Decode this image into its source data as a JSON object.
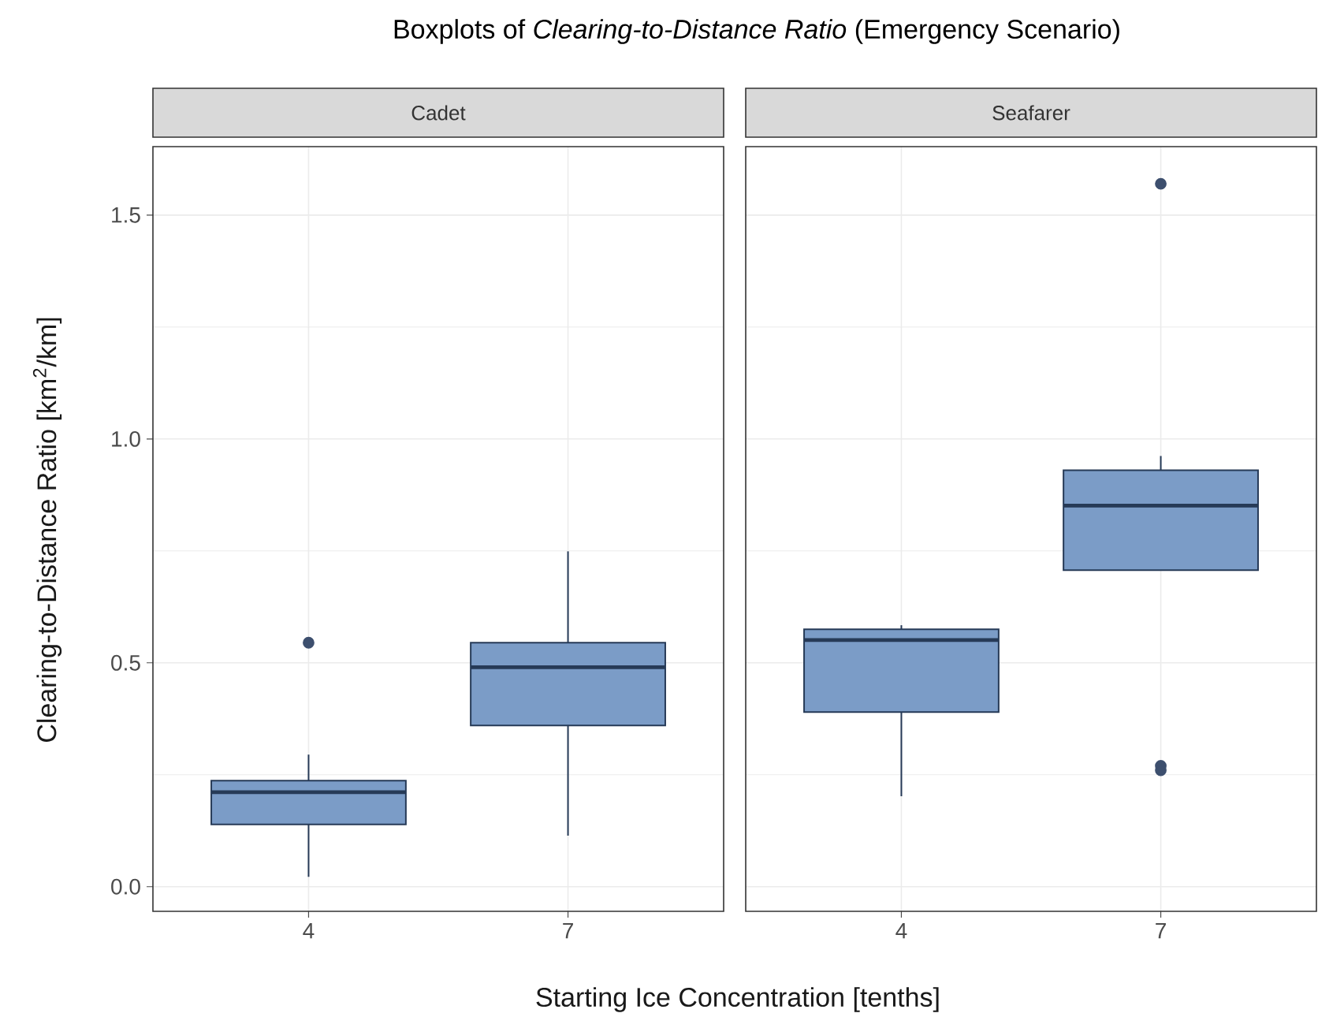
{
  "chart_data": [
    {
      "type": "box",
      "title": "Boxplots of *Clearing-to-Distance Ratio* (Emergency Scenario)",
      "subtitle": "Cadet",
      "xlabel": "Starting Ice Concentration [tenths]",
      "ylabel": "Clearing-to-Distance Ratio [km$^{2}$/km]",
      "categories": [
        "4",
        "7"
      ],
      "ylim": [
        -0.055,
        1.653
      ],
      "yticks": [
        {
          "value": 0,
          "label": "0.0"
        },
        {
          "value": 0.5,
          "label": "0.5"
        },
        {
          "value": 1,
          "label": "1.0"
        },
        {
          "value": 1.5,
          "label": "1.5"
        }
      ],
      "grid": true,
      "series": [
        {
          "color": "#7b9cc7",
          "boxes": [
            {
              "low": 0.022,
              "q1": 0.139,
              "median": 0.211,
              "q3": 0.237,
              "high": 0.295,
              "outliers": [
                0.545
              ]
            },
            {
              "low": 0.114,
              "q1": 0.36,
              "median": 0.49,
              "q3": 0.545,
              "high": 0.749
            }
          ]
        }
      ]
    },
    {
      "type": "box",
      "subtitle": "Seafarer",
      "categories": [
        "4",
        "7"
      ],
      "ylim": [
        -0.055,
        1.653
      ],
      "yticks": [
        0,
        0.5,
        1,
        1.5
      ],
      "grid": true,
      "tick_labels": "x",
      "series": [
        {
          "color": "#7b9cc7",
          "boxes": [
            {
              "low": 0.202,
              "q1": 0.39,
              "median": 0.551,
              "q3": 0.575,
              "high": 0.584
            },
            {
              "low": 0.707,
              "q1": 0.707,
              "median": 0.851,
              "q3": 0.93,
              "high": 0.962,
              "outliers": [
                1.57,
                0.27,
                0.26
              ]
            }
          ]
        }
      ]
    }
  ]
}
